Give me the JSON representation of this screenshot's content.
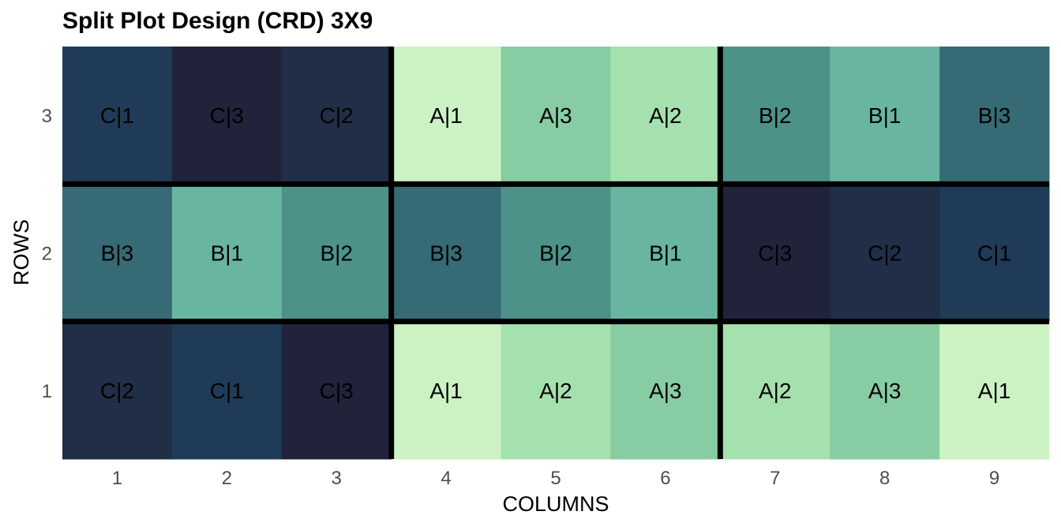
{
  "chart_data": {
    "type": "heatmap",
    "title": "Split Plot Design (CRD) 3X9",
    "xlabel": "COLUMNS",
    "ylabel": "ROWS",
    "x_ticks": [
      "1",
      "2",
      "3",
      "4",
      "5",
      "6",
      "7",
      "8",
      "9"
    ],
    "y_ticks": [
      "1",
      "2",
      "3"
    ],
    "xlim": [
      1,
      9
    ],
    "ylim": [
      1,
      3
    ],
    "grid": false,
    "colors": {
      "A|1": "#ccf2c4",
      "A|2": "#a5e1ae",
      "A|3": "#88cca3",
      "B|1": "#68b6a1",
      "B|2": "#4d9289",
      "B|3": "#366a74",
      "C|1": "#1f3b57",
      "C|2": "#202e47",
      "C|3": "#20233a"
    },
    "cells": [
      {
        "row": 3,
        "col": 1,
        "label": "C|1"
      },
      {
        "row": 3,
        "col": 2,
        "label": "C|3"
      },
      {
        "row": 3,
        "col": 3,
        "label": "C|2"
      },
      {
        "row": 3,
        "col": 4,
        "label": "A|1"
      },
      {
        "row": 3,
        "col": 5,
        "label": "A|3"
      },
      {
        "row": 3,
        "col": 6,
        "label": "A|2"
      },
      {
        "row": 3,
        "col": 7,
        "label": "B|2"
      },
      {
        "row": 3,
        "col": 8,
        "label": "B|1"
      },
      {
        "row": 3,
        "col": 9,
        "label": "B|3"
      },
      {
        "row": 2,
        "col": 1,
        "label": "B|3"
      },
      {
        "row": 2,
        "col": 2,
        "label": "B|1"
      },
      {
        "row": 2,
        "col": 3,
        "label": "B|2"
      },
      {
        "row": 2,
        "col": 4,
        "label": "B|3"
      },
      {
        "row": 2,
        "col": 5,
        "label": "B|2"
      },
      {
        "row": 2,
        "col": 6,
        "label": "B|1"
      },
      {
        "row": 2,
        "col": 7,
        "label": "C|3"
      },
      {
        "row": 2,
        "col": 8,
        "label": "C|2"
      },
      {
        "row": 2,
        "col": 9,
        "label": "C|1"
      },
      {
        "row": 1,
        "col": 1,
        "label": "C|2"
      },
      {
        "row": 1,
        "col": 2,
        "label": "C|1"
      },
      {
        "row": 1,
        "col": 3,
        "label": "C|3"
      },
      {
        "row": 1,
        "col": 4,
        "label": "A|1"
      },
      {
        "row": 1,
        "col": 5,
        "label": "A|2"
      },
      {
        "row": 1,
        "col": 6,
        "label": "A|3"
      },
      {
        "row": 1,
        "col": 7,
        "label": "A|2"
      },
      {
        "row": 1,
        "col": 8,
        "label": "A|3"
      },
      {
        "row": 1,
        "col": 9,
        "label": "A|1"
      }
    ],
    "plot_boundaries": {
      "vertical_after_columns": [
        3,
        6
      ],
      "horizontal_between_rows": [
        1,
        2
      ]
    }
  }
}
